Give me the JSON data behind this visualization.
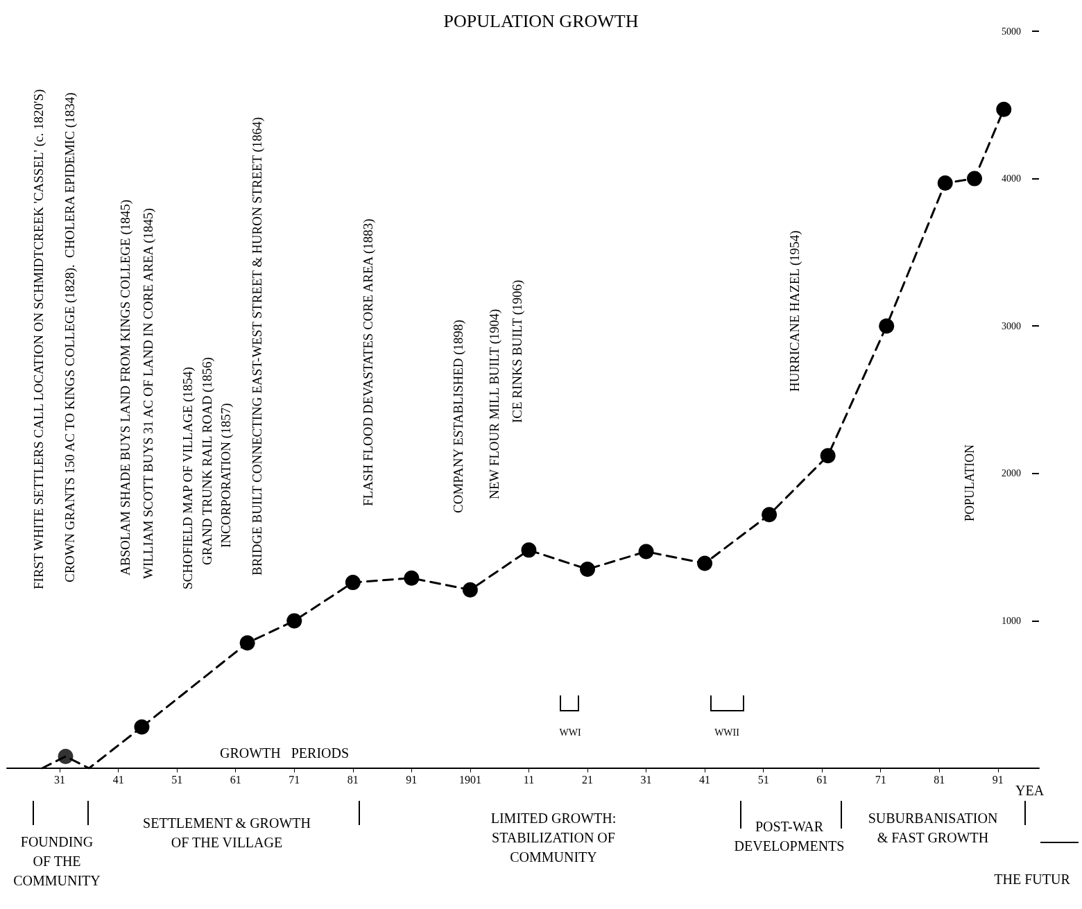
{
  "chart_data": {
    "type": "line",
    "title": "POPULATION GROWTH",
    "xlabel": "YEA",
    "ylabel": "POPULATION",
    "xlim": [
      1822,
      1998
    ],
    "ylim": [
      0,
      5000
    ],
    "xticks": [
      {
        "value": 1831,
        "label": "31"
      },
      {
        "value": 1841,
        "label": "41"
      },
      {
        "value": 1851,
        "label": "51"
      },
      {
        "value": 1861,
        "label": "61"
      },
      {
        "value": 1871,
        "label": "71"
      },
      {
        "value": 1881,
        "label": "81"
      },
      {
        "value": 1891,
        "label": "91"
      },
      1901,
      {
        "value": 1911,
        "label": "11"
      },
      {
        "value": 1921,
        "label": "21"
      },
      {
        "value": 1931,
        "label": "31"
      },
      {
        "value": 1941,
        "label": "41"
      },
      {
        "value": 1951,
        "label": "51"
      },
      {
        "value": 1961,
        "label": "61"
      },
      {
        "value": 1971,
        "label": "71"
      },
      {
        "value": 1981,
        "label": "81"
      },
      {
        "value": 1991,
        "label": "91"
      }
    ],
    "yticks": [
      1000,
      2000,
      3000,
      4000,
      5000
    ],
    "grid": false,
    "series": [
      {
        "type": "line",
        "color": "#000000",
        "marker": "none",
        "line_style": "dashed",
        "x": [
          1828,
          1832,
          1836,
          1845
        ],
        "values": [
          0,
          80,
          0,
          280
        ]
      },
      {
        "type": "line",
        "color": "#000000",
        "marker": "circle",
        "line_style": "dashed",
        "x": [
          1845,
          1863,
          1871,
          1881,
          1891,
          1901,
          1911,
          1921,
          1931,
          1941,
          1952,
          1962,
          1972,
          1982,
          1987,
          1992
        ],
        "values": [
          280,
          850,
          1000,
          1260,
          1290,
          1210,
          1480,
          1350,
          1470,
          1390,
          1720,
          2120,
          3000,
          3970,
          4000,
          4470
        ]
      },
      {
        "type": "scatter",
        "color": "#000000",
        "marker": "circle",
        "x": [
          1832
        ],
        "values": [
          80
        ]
      }
    ],
    "annotations": [
      "GROWTH   PERIODS",
      "FIRST WHITE SETTLERS CALL LOCATION ON SCHMIDTCREEK 'CASSEL' (c. 1820'S)",
      "CROWN GRANTS 150 AC TO KINGS COLLEGE (1828).  CHOLERA EPIDEMIC (1834)",
      "ABSOLAM SHADE BUYS LAND FROM KINGS COLLEGE (1845)",
      "WILLIAM SCOTT BUYS 31 AC OF LAND IN CORE AREA (1845)",
      "SCHOFIELD MAP OF VILLAGE (1854)",
      "GRAND TRUNK RAIL ROAD (1856)",
      "INCORPORATION (1857)",
      "BRIDGE BUILT CONNECTING EAST-WEST STREET & HURON STREET (1864)",
      "FLASH FLOOD DEVASTATES CORE AREA (1883)",
      "COMPANY ESTABLISHED (1898)",
      "NEW FLOUR MILL BUILT (1904)",
      "ICE RINKS BUILT (1906)",
      "HURRICANE HAZEL (1954)",
      "WWI",
      "WWII",
      "FOUNDING\nOF THE\nCOMMUNITY",
      "SETTLEMENT & GROWTH\nOF THE VILLAGE",
      "LIMITED GROWTH:\nSTABILIZATION OF\nCOMMUNITY",
      "POST-WAR\nDEVELOPMENTS",
      "SUBURBANISATION\n& FAST GROWTH",
      "THE FUTUR"
    ]
  }
}
